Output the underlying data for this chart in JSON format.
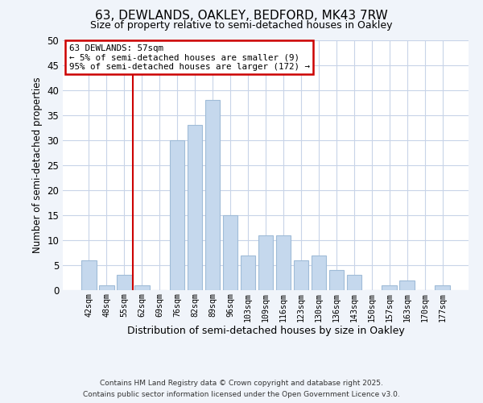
{
  "title": "63, DEWLANDS, OAKLEY, BEDFORD, MK43 7RW",
  "subtitle": "Size of property relative to semi-detached houses in Oakley",
  "xlabel": "Distribution of semi-detached houses by size in Oakley",
  "ylabel": "Number of semi-detached properties",
  "bar_labels": [
    "42sqm",
    "48sqm",
    "55sqm",
    "62sqm",
    "69sqm",
    "76sqm",
    "82sqm",
    "89sqm",
    "96sqm",
    "103sqm",
    "109sqm",
    "116sqm",
    "123sqm",
    "130sqm",
    "136sqm",
    "143sqm",
    "150sqm",
    "157sqm",
    "163sqm",
    "170sqm",
    "177sqm"
  ],
  "bar_values": [
    6,
    1,
    3,
    1,
    0,
    30,
    33,
    38,
    15,
    7,
    11,
    11,
    6,
    7,
    4,
    3,
    0,
    1,
    2,
    0,
    1
  ],
  "bar_color": "#c5d8ed",
  "bar_edge_color": "#a0bcd8",
  "vline_x": 2.5,
  "vline_color": "#cc0000",
  "annotation_title": "63 DEWLANDS: 57sqm",
  "annotation_line1": "← 5% of semi-detached houses are smaller (9)",
  "annotation_line2": "95% of semi-detached houses are larger (172) →",
  "ylim": [
    0,
    50
  ],
  "yticks": [
    0,
    5,
    10,
    15,
    20,
    25,
    30,
    35,
    40,
    45,
    50
  ],
  "footer1": "Contains HM Land Registry data © Crown copyright and database right 2025.",
  "footer2": "Contains public sector information licensed under the Open Government Licence v3.0.",
  "bg_color": "#f0f4fa",
  "plot_bg_color": "#ffffff",
  "grid_color": "#c8d4e8"
}
